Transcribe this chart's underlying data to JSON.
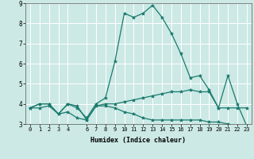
{
  "xlabel": "Humidex (Indice chaleur)",
  "xlim": [
    -0.5,
    23.5
  ],
  "ylim": [
    3,
    9
  ],
  "yticks": [
    3,
    4,
    5,
    6,
    7,
    8,
    9
  ],
  "xticks": [
    0,
    1,
    2,
    3,
    4,
    6,
    7,
    8,
    9,
    10,
    11,
    12,
    13,
    14,
    15,
    16,
    17,
    18,
    19,
    20,
    21,
    22,
    23
  ],
  "bg_color": "#cce9e5",
  "line_color": "#1a7a6e",
  "grid_color": "#ffffff",
  "series": [
    [
      3.8,
      4.0,
      4.0,
      3.5,
      4.0,
      3.8,
      3.3,
      4.0,
      4.3,
      6.1,
      8.5,
      8.3,
      8.5,
      8.9,
      8.3,
      7.5,
      6.5,
      5.3,
      5.4,
      4.7,
      3.8,
      5.4,
      4.0,
      2.9
    ],
    [
      3.8,
      4.0,
      4.0,
      3.5,
      4.0,
      3.9,
      3.2,
      3.9,
      4.0,
      4.0,
      4.1,
      4.2,
      4.3,
      4.4,
      4.5,
      4.6,
      4.6,
      4.7,
      4.6,
      4.6,
      3.8,
      3.8,
      3.8,
      3.8
    ],
    [
      3.8,
      3.8,
      3.9,
      3.5,
      3.6,
      3.3,
      3.2,
      3.9,
      3.9,
      3.8,
      3.6,
      3.5,
      3.3,
      3.2,
      3.2,
      3.2,
      3.2,
      3.2,
      3.2,
      3.1,
      3.1,
      3.0,
      2.9,
      2.9
    ]
  ]
}
